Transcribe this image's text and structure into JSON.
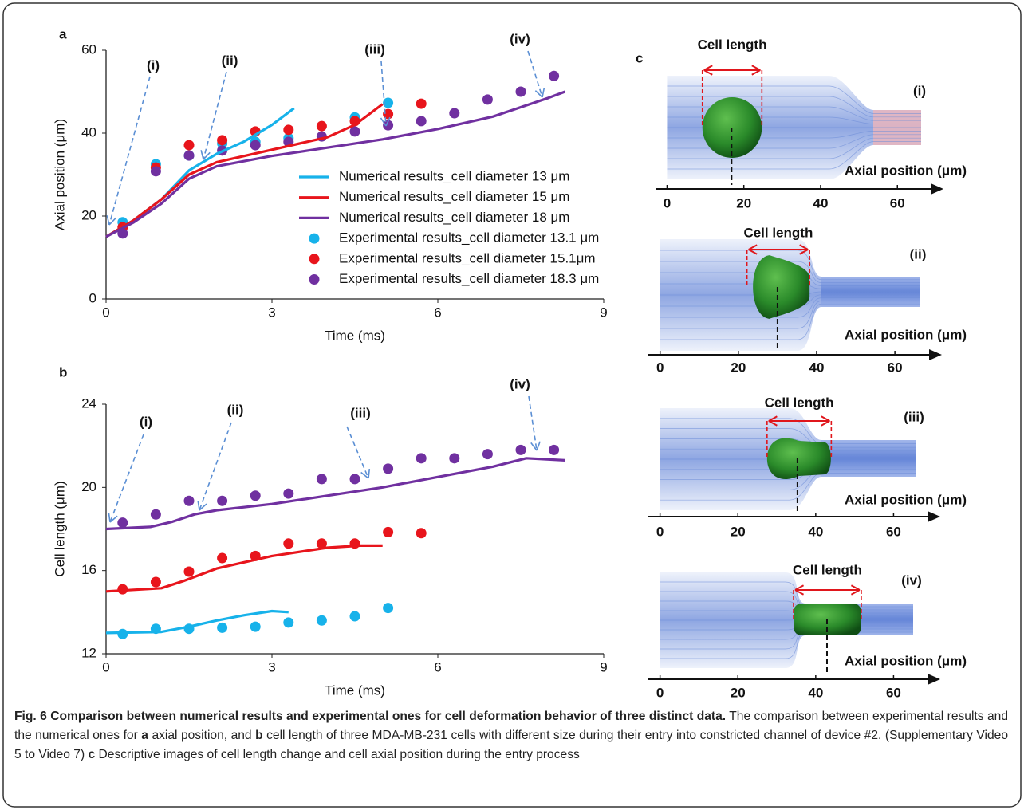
{
  "chart_data": [
    {
      "panel": "a",
      "type": "scatter",
      "x_label": "Time (ms)",
      "y_label": "Axial position (μm)",
      "xlim": [
        0,
        9
      ],
      "xticks": [
        0,
        3,
        6,
        9
      ],
      "ylim": [
        0,
        60
      ],
      "yticks": [
        0,
        20,
        40,
        60
      ],
      "legend": "center-right",
      "annotations": [
        "(i)",
        "(ii)",
        "(iii)",
        "(iv)"
      ],
      "series": [
        {
          "name": "Numerical results_cell diameter 13 μm",
          "color": "#17b2ea",
          "mode": "line",
          "x": [
            0,
            0.5,
            1,
            1.5,
            2,
            2.5,
            3,
            3.4
          ],
          "values": [
            15,
            19,
            24,
            31,
            35,
            38,
            42,
            46
          ]
        },
        {
          "name": "Numerical results_cell diameter 15 μm",
          "color": "#e8151c",
          "mode": "line",
          "x": [
            0,
            0.5,
            1,
            1.5,
            2,
            3,
            4,
            4.5,
            5
          ],
          "values": [
            15,
            19,
            24,
            30,
            33,
            36,
            39,
            42,
            47
          ]
        },
        {
          "name": "Numerical results_cell diameter 18 μm",
          "color": "#7030a0",
          "mode": "line",
          "x": [
            0,
            0.5,
            1,
            1.5,
            2,
            3,
            4,
            5,
            6,
            7,
            8,
            8.3
          ],
          "values": [
            15,
            18.5,
            23,
            29,
            32,
            34.5,
            36.5,
            38.5,
            41,
            44,
            48.5,
            50
          ]
        },
        {
          "name": "Experimental results_cell diameter 13.1 μm",
          "color": "#17b2ea",
          "mode": "markers",
          "x": [
            0.3,
            0.9,
            1.5,
            2.1,
            2.7,
            3.3,
            4.5,
            5.1
          ],
          "values": [
            18.5,
            32.5,
            34.6,
            37.5,
            37.9,
            38.8,
            43.8,
            47.3
          ]
        },
        {
          "name": "Experimental results_cell diameter 15.1μm",
          "color": "#e8151c",
          "mode": "markers",
          "x": [
            0.3,
            0.9,
            1.5,
            2.1,
            2.7,
            3.3,
            3.9,
            4.5,
            5.1,
            5.7
          ],
          "values": [
            17.3,
            31.7,
            37.1,
            38.3,
            40.4,
            40.8,
            41.7,
            42.9,
            44.6,
            47.1
          ]
        },
        {
          "name": "Experimental results_cell diameter 18.3 μm",
          "color": "#7030a0",
          "mode": "markers",
          "x": [
            0.3,
            0.9,
            1.5,
            2.1,
            2.7,
            3.3,
            3.9,
            4.5,
            5.1,
            5.7,
            6.3,
            6.9,
            7.5,
            8.1
          ],
          "values": [
            15.8,
            30.8,
            34.6,
            35.8,
            37.1,
            37.9,
            39.2,
            40.4,
            41.9,
            42.9,
            44.8,
            48.1,
            50,
            53.8
          ]
        }
      ]
    },
    {
      "panel": "b",
      "type": "scatter",
      "x_label": "Time (ms)",
      "y_label": "Cell length (μm)",
      "xlim": [
        0,
        9
      ],
      "xticks": [
        0,
        3,
        6,
        9
      ],
      "ylim": [
        12,
        24
      ],
      "yticks": [
        12,
        16,
        20,
        24
      ],
      "annotations": [
        "(i)",
        "(ii)",
        "(iii)",
        "(iv)"
      ],
      "series": [
        {
          "name": "Numerical results_cell diameter 13 μm",
          "color": "#17b2ea",
          "mode": "line",
          "x": [
            0,
            1,
            1.5,
            2,
            2.5,
            3,
            3.3
          ],
          "values": [
            13,
            13.05,
            13.3,
            13.6,
            13.85,
            14.05,
            14
          ]
        },
        {
          "name": "Numerical results_cell diameter 15 μm",
          "color": "#e8151c",
          "mode": "line",
          "x": [
            0,
            1,
            1.4,
            2,
            3,
            4,
            4.6,
            5
          ],
          "values": [
            15,
            15.15,
            15.5,
            16.1,
            16.7,
            17.1,
            17.2,
            17.2
          ]
        },
        {
          "name": "Numerical results_cell diameter 18 μm",
          "color": "#7030a0",
          "mode": "line",
          "x": [
            0,
            0.8,
            1.2,
            1.6,
            2,
            3,
            4,
            5,
            6,
            7,
            7.6,
            8.3
          ],
          "values": [
            18,
            18.1,
            18.35,
            18.7,
            18.9,
            19.2,
            19.6,
            20,
            20.5,
            21,
            21.4,
            21.3
          ]
        },
        {
          "name": "Experimental results_cell diameter 13.1 μm",
          "color": "#17b2ea",
          "mode": "markers",
          "x": [
            0.3,
            0.9,
            1.5,
            2.1,
            2.7,
            3.3,
            3.9,
            4.5,
            5.1
          ],
          "values": [
            12.95,
            13.2,
            13.2,
            13.25,
            13.3,
            13.5,
            13.6,
            13.8,
            14.2
          ]
        },
        {
          "name": "Experimental results_cell diameter 15.1μm",
          "color": "#e8151c",
          "mode": "markers",
          "x": [
            0.3,
            0.9,
            1.5,
            2.1,
            2.7,
            3.3,
            3.9,
            4.5,
            5.1,
            5.7
          ],
          "values": [
            15.1,
            15.45,
            15.95,
            16.6,
            16.7,
            17.3,
            17.3,
            17.3,
            17.85,
            17.8
          ]
        },
        {
          "name": "Experimental results_cell diameter 18.3 μm",
          "color": "#7030a0",
          "mode": "markers",
          "x": [
            0.3,
            0.9,
            1.5,
            2.1,
            2.7,
            3.3,
            3.9,
            4.5,
            5.1,
            5.7,
            6.3,
            6.9,
            7.5,
            8.1
          ],
          "values": [
            18.3,
            18.7,
            19.35,
            19.35,
            19.6,
            19.7,
            20.4,
            20.4,
            20.9,
            21.4,
            21.4,
            21.6,
            21.8,
            21.8
          ]
        }
      ]
    }
  ],
  "panel_c": {
    "label": "c",
    "images": [
      {
        "stage": "(i)",
        "cell_length_label": "Cell length",
        "axis_label": "Axial position (μm)",
        "xlim": [
          -3,
          72
        ],
        "xticks": [
          0,
          20,
          40,
          60
        ],
        "cell_span": [
          9.2,
          24.7
        ],
        "cell_position": 16.8
      },
      {
        "stage": "(ii)",
        "cell_length_label": "Cell length",
        "axis_label": "Axial position (μm)",
        "xlim": [
          -3,
          72
        ],
        "xticks": [
          0,
          20,
          40,
          60
        ],
        "cell_span": [
          22.2,
          38.2
        ],
        "cell_position": 30
      },
      {
        "stage": "(iii)",
        "cell_length_label": "Cell length",
        "axis_label": "Axial position (μm)",
        "xlim": [
          -3,
          72
        ],
        "xticks": [
          0,
          20,
          40,
          60
        ],
        "cell_span": [
          27.5,
          44
        ],
        "cell_position": 35.3
      },
      {
        "stage": "(iv)",
        "cell_length_label": "Cell length",
        "axis_label": "Axial position (μm)",
        "xlim": [
          -3,
          72
        ],
        "xticks": [
          0,
          20,
          40,
          60
        ],
        "cell_span": [
          34.3,
          51.7
        ],
        "cell_position": 42.9
      }
    ]
  },
  "caption": [
    {
      "text": "Fig. 6 Comparison between numerical results and experimental ones for cell deformation behavior of three distinct data.",
      "bold": true
    },
    {
      "text": " The comparison between experimental results and the numerical ones for ",
      "bold": false
    },
    {
      "text": "a",
      "bold": true
    },
    {
      "text": " axial position, and ",
      "bold": false
    },
    {
      "text": "b",
      "bold": true
    },
    {
      "text": " cell length of three MDA-MB-231 cells with different size during their entry into constricted channel of device #2. (Supplementary Video 5 to Video 7) ",
      "bold": false
    },
    {
      "text": "c",
      "bold": true
    },
    {
      "text": " Descriptive images of cell length change and cell axial position during the entry process",
      "bold": false
    }
  ]
}
